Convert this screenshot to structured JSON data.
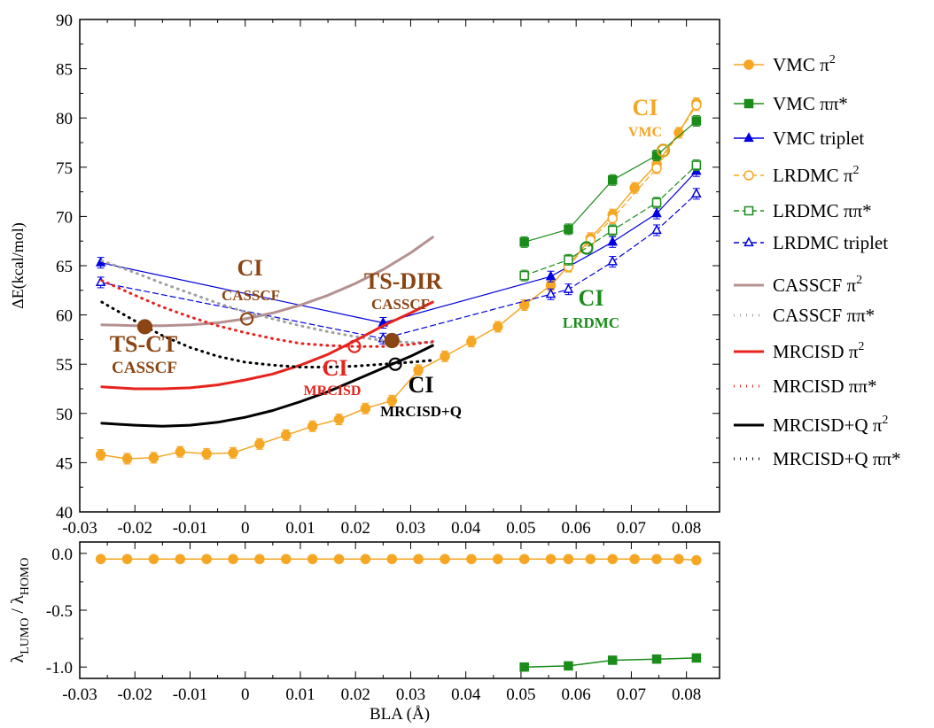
{
  "chart_data": [
    {
      "type": "line",
      "ylabel": "ΔE(kcal/mol)",
      "xlim": [
        -0.03,
        0.086
      ],
      "ylim": [
        40,
        90
      ],
      "xticks": [
        -0.03,
        -0.02,
        -0.01,
        0,
        0.01,
        0.02,
        0.03,
        0.04,
        0.05,
        0.06,
        0.07,
        0.08
      ],
      "xtick_labels": [
        "-0.03",
        "-0.02",
        "-0.01",
        "0",
        "0.01",
        "0.02",
        "0.03",
        "0.04",
        "0.05",
        "0.06",
        "0.07",
        "0.08"
      ],
      "yticks": [
        40,
        45,
        50,
        55,
        60,
        65,
        70,
        75,
        80,
        85,
        90
      ],
      "ytick_labels": [
        "40",
        "45",
        "50",
        "55",
        "60",
        "65",
        "70",
        "75",
        "80",
        "85",
        "90"
      ],
      "grid": false,
      "legend_position": "right",
      "series": [
        {
          "key": "vmc_pi2",
          "name_main": "VMC π",
          "name_sup": "2",
          "color": "#f5a623",
          "style": "solid",
          "width": 1.5,
          "marker": "circle",
          "fill": true,
          "x": [
            -0.0262,
            -0.0214,
            -0.0166,
            -0.0118,
            -0.007,
            -0.0022,
            0.0026,
            0.0074,
            0.0122,
            0.017,
            0.0218,
            0.0266,
            0.0314,
            0.0362,
            0.041,
            0.0458,
            0.0506,
            0.0554,
            0.0586,
            0.0626,
            0.0666,
            0.0706,
            0.0746,
            0.0786,
            0.0818
          ],
          "y": [
            45.8,
            45.4,
            45.5,
            46.1,
            45.9,
            46.0,
            46.9,
            47.8,
            48.7,
            49.4,
            50.5,
            51.3,
            54.4,
            55.8,
            57.3,
            58.8,
            61.0,
            63.0,
            65.0,
            67.8,
            70.2,
            72.9,
            75.3,
            78.5,
            81.5
          ]
        },
        {
          "key": "vmc_pipi",
          "name_main": "VMC ππ*",
          "name_sup": "",
          "color": "#1a8c1a",
          "style": "solid",
          "width": 1.2,
          "marker": "square",
          "fill": true,
          "x": [
            0.0506,
            0.0586,
            0.0666,
            0.0746,
            0.0818
          ],
          "y": [
            67.4,
            68.7,
            73.7,
            76.2,
            79.7
          ]
        },
        {
          "key": "vmc_trip",
          "name_main": "VMC triplet",
          "name_sup": "",
          "color": "#0000e0",
          "style": "solid",
          "width": 1.2,
          "marker": "triangle",
          "fill": true,
          "x": [
            -0.0262,
            0.025,
            0.0554,
            0.0666,
            0.0746,
            0.0818
          ],
          "y": [
            65.3,
            59.2,
            63.9,
            67.4,
            70.3,
            74.6
          ]
        },
        {
          "key": "lrdmc_pi2",
          "name_main": "LRDMC π",
          "name_sup": "2",
          "color": "#f5a623",
          "style": "dashed",
          "width": 1.2,
          "marker": "circle",
          "fill": false,
          "x": [
            0.0586,
            0.0626,
            0.0666,
            0.0746,
            0.0818
          ],
          "y": [
            64.9,
            67.6,
            69.8,
            74.9,
            81.3
          ]
        },
        {
          "key": "lrdmc_pipi",
          "name_main": "LRDMC ππ*",
          "name_sup": "",
          "color": "#1a8c1a",
          "style": "dashed",
          "width": 1.2,
          "marker": "square",
          "fill": false,
          "x": [
            0.0506,
            0.0586,
            0.0666,
            0.0746,
            0.0818
          ],
          "y": [
            64.0,
            65.6,
            68.6,
            71.4,
            75.2
          ]
        },
        {
          "key": "lrdmc_trip",
          "name_main": "LRDMC triplet",
          "name_sup": "",
          "color": "#0000e0",
          "style": "dashed",
          "width": 1.2,
          "marker": "triangle",
          "fill": false,
          "x": [
            -0.0262,
            0.025,
            0.0554,
            0.0586,
            0.0666,
            0.0746,
            0.0818
          ],
          "y": [
            63.3,
            57.6,
            62.1,
            62.6,
            65.4,
            68.6,
            72.3
          ]
        },
        {
          "key": "cas_pi2",
          "name_main": "CASSCF π",
          "name_sup": "2",
          "color": "#b59090",
          "style": "solid",
          "width": 3,
          "marker": "none",
          "fill": false,
          "x": [
            -0.026,
            -0.02,
            -0.015,
            -0.01,
            -0.005,
            0.0,
            0.005,
            0.01,
            0.015,
            0.02,
            0.025,
            0.03,
            0.034
          ],
          "y": [
            59.0,
            58.9,
            58.9,
            59.0,
            59.2,
            59.6,
            60.2,
            61.0,
            62.0,
            63.2,
            64.6,
            66.3,
            67.9
          ]
        },
        {
          "key": "cas_pipi",
          "name_main": "CASSCF ππ*",
          "name_sup": "",
          "color": "#a0a0a0",
          "style": "dotted",
          "width": 3,
          "marker": "none",
          "fill": false,
          "x": [
            -0.026,
            -0.02,
            -0.015,
            -0.01,
            -0.005,
            0.0,
            0.005,
            0.01,
            0.015,
            0.02,
            0.025,
            0.03,
            0.034
          ],
          "y": [
            65.5,
            64.3,
            63.2,
            62.2,
            61.2,
            60.3,
            59.6,
            58.9,
            58.3,
            57.8,
            57.4,
            57.2,
            57.2
          ]
        },
        {
          "key": "mr_pi2",
          "name_main": "MRCISD π",
          "name_sup": "2",
          "color": "#e8221c",
          "style": "solid",
          "width": 3,
          "marker": "none",
          "fill": false,
          "x": [
            -0.026,
            -0.02,
            -0.015,
            -0.01,
            -0.005,
            0.0,
            0.005,
            0.01,
            0.015,
            0.02,
            0.025,
            0.03,
            0.034
          ],
          "y": [
            52.7,
            52.5,
            52.5,
            52.6,
            52.9,
            53.4,
            54.0,
            54.9,
            56.0,
            57.4,
            58.9,
            60.2,
            61.3
          ]
        },
        {
          "key": "mr_pipi",
          "name_main": "MRCISD ππ*",
          "name_sup": "",
          "color": "#e8221c",
          "style": "dotted",
          "width": 3,
          "marker": "none",
          "fill": false,
          "x": [
            -0.026,
            -0.02,
            -0.015,
            -0.01,
            -0.005,
            0.0,
            0.005,
            0.01,
            0.015,
            0.02,
            0.025,
            0.03,
            0.034
          ],
          "y": [
            63.5,
            62.0,
            60.8,
            59.8,
            58.9,
            58.2,
            57.6,
            57.1,
            56.9,
            56.8,
            56.8,
            57.0,
            57.3
          ]
        },
        {
          "key": "mrq_pi2",
          "name_main": "MRCISD+Q π",
          "name_sup": "2",
          "color": "#000000",
          "style": "solid",
          "width": 3,
          "marker": "none",
          "fill": false,
          "x": [
            -0.026,
            -0.02,
            -0.015,
            -0.01,
            -0.005,
            0.0,
            0.005,
            0.01,
            0.015,
            0.02,
            0.025,
            0.03,
            0.034
          ],
          "y": [
            49.0,
            48.8,
            48.7,
            48.8,
            49.1,
            49.6,
            50.3,
            51.2,
            52.2,
            53.4,
            54.6,
            55.8,
            56.9
          ]
        },
        {
          "key": "mrq_pipi",
          "name_main": "MRCISD+Q ππ*",
          "name_sup": "",
          "color": "#000000",
          "style": "dotted",
          "width": 3,
          "marker": "none",
          "fill": false,
          "x": [
            -0.026,
            -0.02,
            -0.015,
            -0.01,
            -0.005,
            0.0,
            0.005,
            0.01,
            0.015,
            0.02,
            0.025,
            0.03,
            0.034
          ],
          "y": [
            61.3,
            59.4,
            57.9,
            56.7,
            55.8,
            55.2,
            54.9,
            54.7,
            54.7,
            54.8,
            55.0,
            55.2,
            55.4
          ]
        }
      ],
      "special_points": [
        {
          "key": "ts_ct",
          "x": -0.0182,
          "y": 58.8,
          "filled": true,
          "color": "#8b4513"
        },
        {
          "key": "ts_dir",
          "x": 0.0266,
          "y": 57.4,
          "filled": true,
          "color": "#8b4513"
        },
        {
          "key": "ci_casscf",
          "x": 0.0003,
          "y": 59.6,
          "filled": false,
          "color": "#8b4513"
        },
        {
          "key": "ci_mrcisd",
          "x": 0.0198,
          "y": 56.8,
          "filled": false,
          "color": "#e8221c"
        },
        {
          "key": "ci_mrq",
          "x": 0.0272,
          "y": 55.0,
          "filled": false,
          "color": "#000000"
        },
        {
          "key": "ci_lrdmc",
          "x": 0.0619,
          "y": 66.8,
          "filled": false,
          "color": "#1a8c1a"
        },
        {
          "key": "ci_vmc",
          "x": 0.0758,
          "y": 76.7,
          "filled": false,
          "color": "#d4a017"
        }
      ],
      "annotations": [
        {
          "key": "ts_ct",
          "main": "TS-CT",
          "sub": "CASSCF",
          "color": "#8b4513"
        },
        {
          "key": "ci_casscf",
          "main": "CI",
          "sub": "CASSCF",
          "color": "#8b4513"
        },
        {
          "key": "ts_dir",
          "main": "TS-DIR",
          "sub": "CASSCF",
          "color": "#8b4513"
        },
        {
          "key": "ci_mrcisd",
          "main": "CI",
          "sub": "MRCISD",
          "color": "#e8221c"
        },
        {
          "key": "ci_mrq",
          "main": "CI",
          "sub": "MRCISD+Q",
          "color": "#000000"
        },
        {
          "key": "ci_lrdmc",
          "main": "CI",
          "sub": "LRDMC",
          "color": "#1a8c1a"
        },
        {
          "key": "ci_vmc",
          "main": "CI",
          "sub": "VMC",
          "color": "#f5a623"
        }
      ]
    },
    {
      "type": "line",
      "xlabel": "BLA (Å)",
      "ylabel": "λ LUMO / λ HOMO",
      "ylabel_parts": {
        "lambda1": "λ",
        "sub1": "LUMO",
        "sep": " / λ",
        "sub2": "HOMO"
      },
      "xlim": [
        -0.03,
        0.086
      ],
      "ylim": [
        -1.1,
        0.1
      ],
      "xticks": [
        -0.03,
        -0.02,
        -0.01,
        0,
        0.01,
        0.02,
        0.03,
        0.04,
        0.05,
        0.06,
        0.07,
        0.08
      ],
      "xtick_labels": [
        "-0.03",
        "-0.02",
        "-0.01",
        "0",
        "0.01",
        "0.02",
        "0.03",
        "0.04",
        "0.05",
        "0.06",
        "0.07",
        "0.08"
      ],
      "yticks": [
        0.0,
        -0.5,
        -1.0
      ],
      "ytick_labels": [
        "0.0",
        "-0.5",
        "-1.0"
      ],
      "series": [
        {
          "key": "ratio_pi2",
          "color": "#f5a623",
          "marker": "circle",
          "x": [
            -0.0262,
            -0.0214,
            -0.0166,
            -0.0118,
            -0.007,
            -0.0022,
            0.0026,
            0.0074,
            0.0122,
            0.017,
            0.0218,
            0.0266,
            0.0314,
            0.0362,
            0.041,
            0.0458,
            0.0506,
            0.0554,
            0.0586,
            0.0626,
            0.0666,
            0.0706,
            0.0746,
            0.0786,
            0.0818
          ],
          "y": [
            -0.05,
            -0.05,
            -0.05,
            -0.05,
            -0.05,
            -0.05,
            -0.05,
            -0.05,
            -0.05,
            -0.05,
            -0.05,
            -0.05,
            -0.05,
            -0.05,
            -0.05,
            -0.05,
            -0.05,
            -0.05,
            -0.05,
            -0.05,
            -0.05,
            -0.05,
            -0.05,
            -0.05,
            -0.06
          ]
        },
        {
          "key": "ratio_pipi",
          "color": "#1a8c1a",
          "marker": "square",
          "x": [
            0.0506,
            0.0586,
            0.0666,
            0.0746,
            0.0818
          ],
          "y": [
            -1.0,
            -0.99,
            -0.94,
            -0.93,
            -0.92
          ]
        }
      ]
    }
  ]
}
